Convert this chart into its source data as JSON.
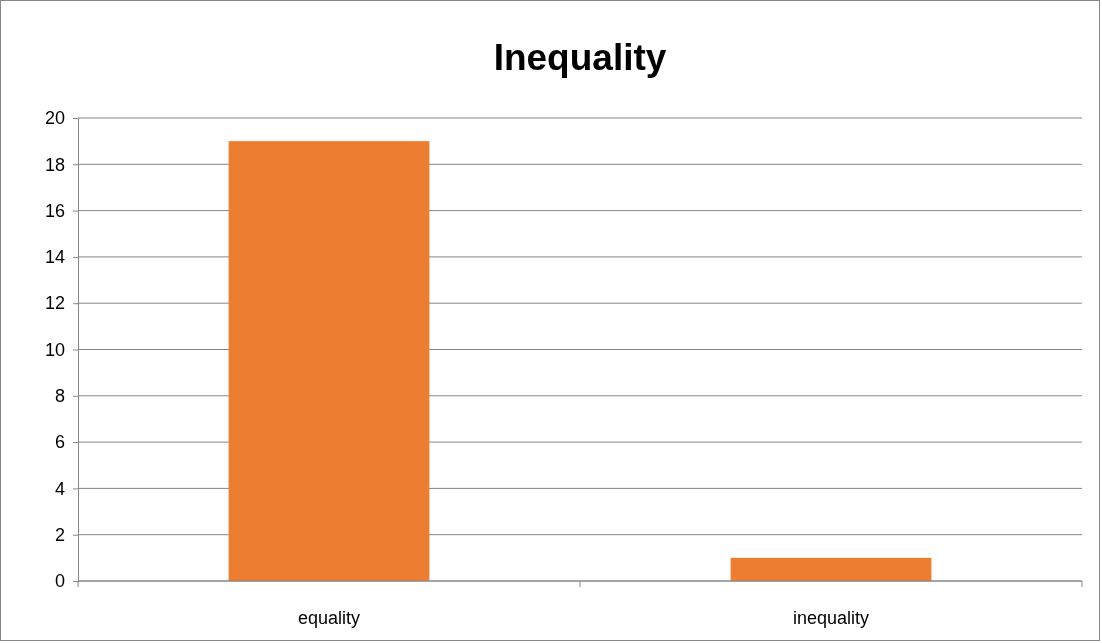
{
  "chart_data": {
    "type": "bar",
    "title": "Inequality",
    "categories": [
      "equality",
      "inequality"
    ],
    "values": [
      19,
      1
    ],
    "color": "#ed7d31",
    "ylim": [
      0,
      20
    ],
    "yticks": [
      0,
      2,
      4,
      6,
      8,
      10,
      12,
      14,
      16,
      18,
      20
    ],
    "grid": "y"
  }
}
